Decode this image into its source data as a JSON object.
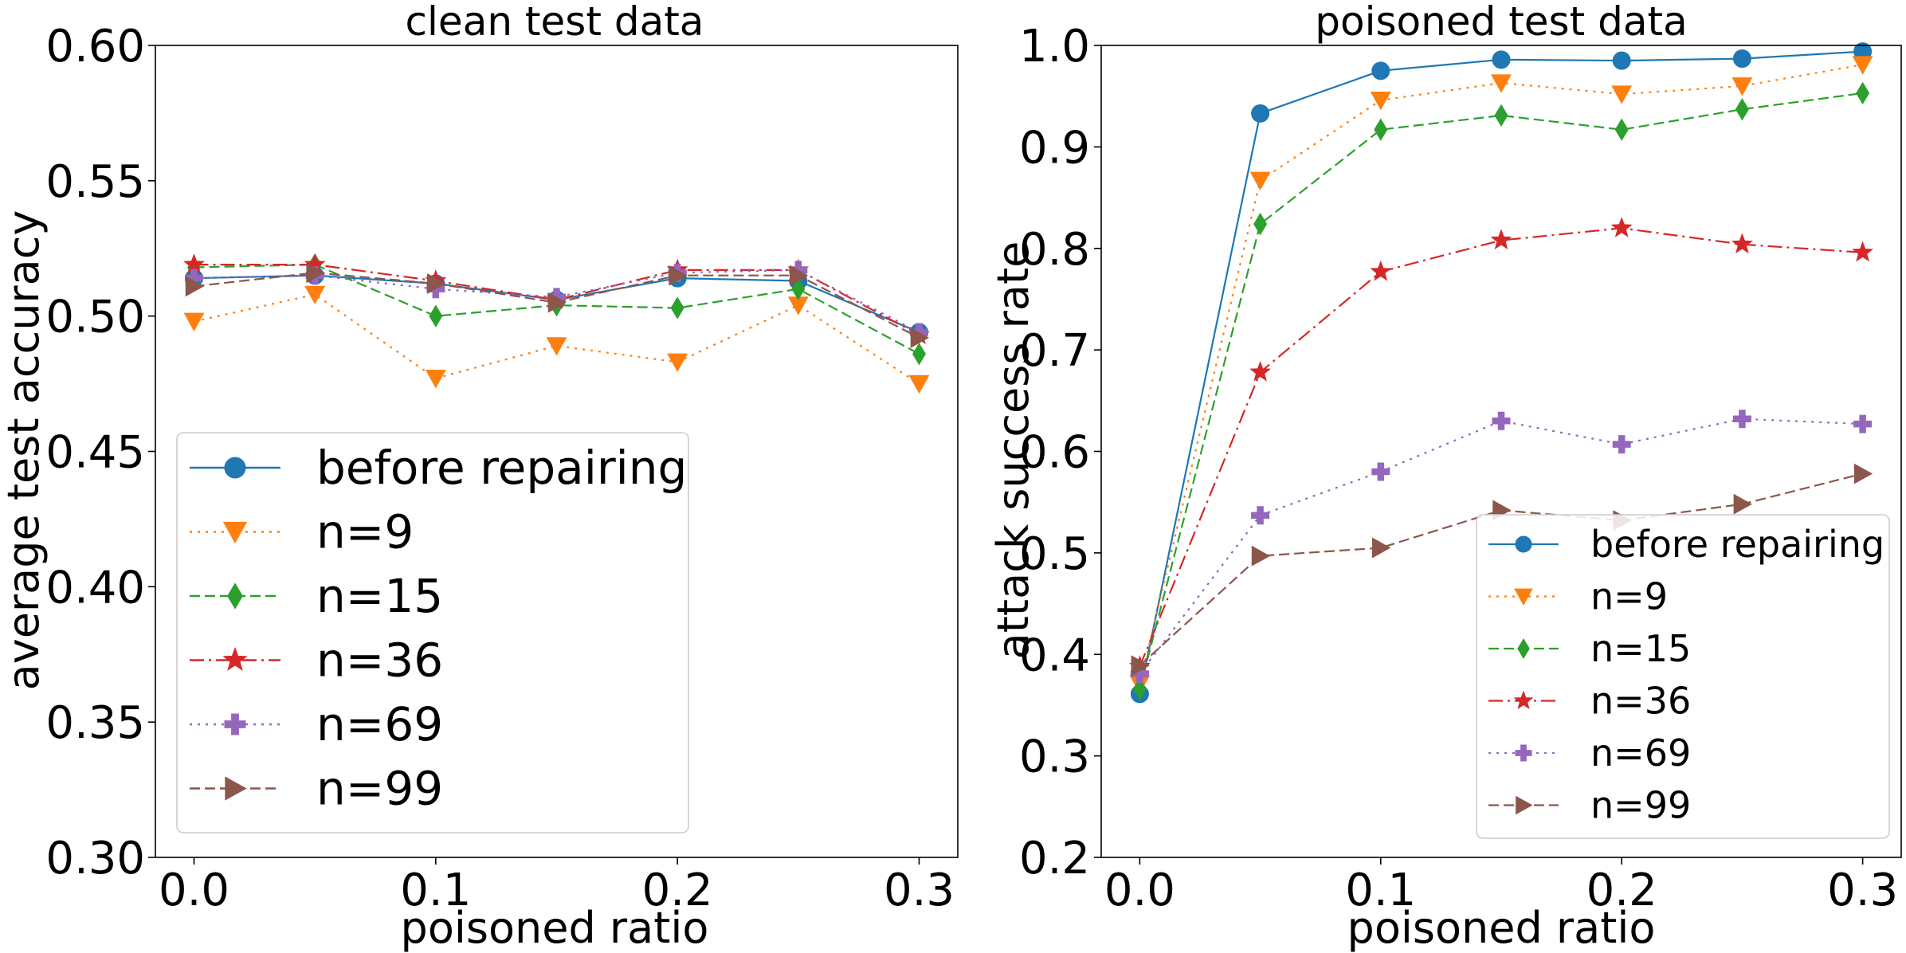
{
  "chart_data": [
    {
      "type": "line",
      "title": "clean test data",
      "xlabel": "poisoned ratio",
      "ylabel": "average test accuracy",
      "x": [
        0.0,
        0.05,
        0.1,
        0.15,
        0.2,
        0.25,
        0.3
      ],
      "xlim": [
        -0.016,
        0.316
      ],
      "ylim": [
        0.3,
        0.6
      ],
      "xticks": [
        0.0,
        0.1,
        0.2,
        0.3
      ],
      "xtick_labels": [
        "0.0",
        "0.1",
        "0.2",
        "0.3"
      ],
      "yticks": [
        0.3,
        0.35,
        0.4,
        0.45,
        0.5,
        0.55,
        0.6
      ],
      "ytick_labels": [
        "0.30",
        "0.35",
        "0.40",
        "0.45",
        "0.50",
        "0.55",
        "0.60"
      ],
      "grid": false,
      "legend_position": "lower-left",
      "series": [
        {
          "name": "before repairing",
          "values": [
            0.514,
            0.515,
            0.512,
            0.506,
            0.514,
            0.513,
            0.494
          ]
        },
        {
          "name": "n=9",
          "values": [
            0.498,
            0.508,
            0.477,
            0.489,
            0.483,
            0.504,
            0.475
          ]
        },
        {
          "name": "n=15",
          "values": [
            0.518,
            0.519,
            0.5,
            0.504,
            0.503,
            0.51,
            0.486
          ]
        },
        {
          "name": "n=36",
          "values": [
            0.519,
            0.519,
            0.513,
            0.506,
            0.517,
            0.517,
            0.493
          ]
        },
        {
          "name": "n=69",
          "values": [
            0.514,
            0.515,
            0.51,
            0.507,
            0.516,
            0.517,
            0.494
          ]
        },
        {
          "name": "n=99",
          "values": [
            0.511,
            0.516,
            0.512,
            0.505,
            0.515,
            0.515,
            0.492
          ]
        }
      ]
    },
    {
      "type": "line",
      "title": "poisoned test data",
      "xlabel": "poisoned ratio",
      "ylabel": "attack success rate",
      "x": [
        0.0,
        0.05,
        0.1,
        0.15,
        0.2,
        0.25,
        0.3
      ],
      "xlim": [
        -0.016,
        0.316
      ],
      "ylim": [
        0.2,
        1.0
      ],
      "xticks": [
        0.0,
        0.1,
        0.2,
        0.3
      ],
      "xtick_labels": [
        "0.0",
        "0.1",
        "0.2",
        "0.3"
      ],
      "yticks": [
        0.2,
        0.3,
        0.4,
        0.5,
        0.6,
        0.7,
        0.8,
        0.9,
        1.0
      ],
      "ytick_labels": [
        "0.2",
        "0.3",
        "0.4",
        "0.5",
        "0.6",
        "0.7",
        "0.8",
        "0.9",
        "1.0"
      ],
      "grid": false,
      "legend_position": "lower-right",
      "series": [
        {
          "name": "before repairing",
          "values": [
            0.361,
            0.933,
            0.975,
            0.986,
            0.985,
            0.987,
            0.994
          ]
        },
        {
          "name": "n=9",
          "values": [
            0.371,
            0.867,
            0.946,
            0.963,
            0.952,
            0.96,
            0.981
          ]
        },
        {
          "name": "n=15",
          "values": [
            0.366,
            0.824,
            0.917,
            0.931,
            0.917,
            0.937,
            0.953
          ]
        },
        {
          "name": "n=36",
          "values": [
            0.388,
            0.678,
            0.777,
            0.808,
            0.82,
            0.804,
            0.796
          ]
        },
        {
          "name": "n=69",
          "values": [
            0.381,
            0.537,
            0.58,
            0.63,
            0.607,
            0.632,
            0.627
          ]
        },
        {
          "name": "n=99",
          "values": [
            0.389,
            0.497,
            0.505,
            0.542,
            0.532,
            0.548,
            0.578
          ]
        }
      ]
    }
  ],
  "style": {
    "series_colors": [
      "#1f77b4",
      "#ff7f0e",
      "#2ca02c",
      "#d62728",
      "#9467bd",
      "#8c564b"
    ],
    "series_markers": [
      "circle-icon",
      "triangle-down-icon",
      "diamond-icon",
      "star-icon",
      "plus-icon",
      "triangle-right-icon"
    ],
    "series_dashes": [
      "solid",
      "dotted",
      "dashed",
      "dashdot",
      "dotted",
      "dashed"
    ],
    "axis_color": "#000000",
    "legend_border": "#cccccc",
    "background": "#ffffff"
  }
}
